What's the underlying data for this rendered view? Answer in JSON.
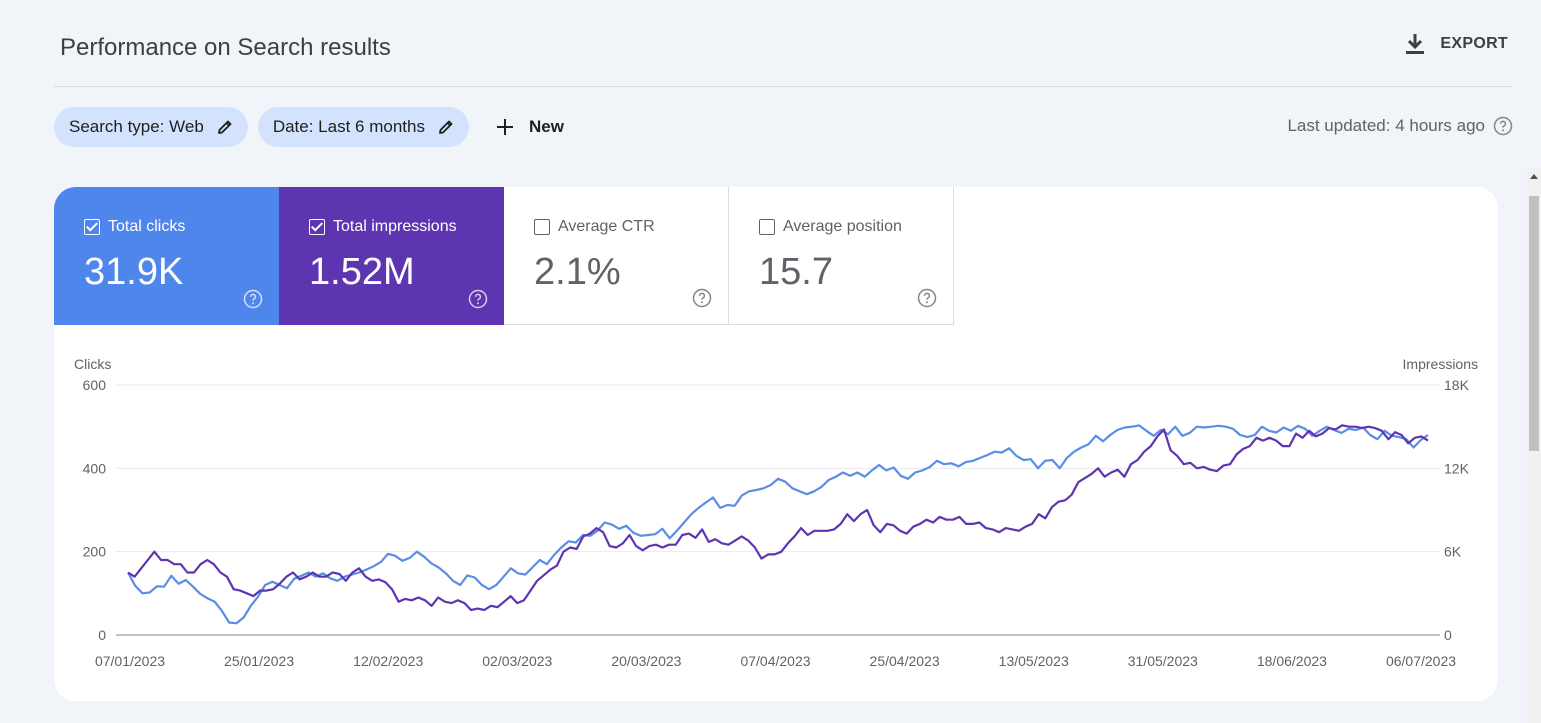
{
  "header": {
    "title": "Performance on Search results",
    "export_label": "EXPORT"
  },
  "filters": {
    "search_type": "Search type: Web",
    "date": "Date: Last 6 months",
    "new_label": "New"
  },
  "last_updated": "Last updated: 4 hours ago",
  "metrics": {
    "clicks": {
      "label": "Total clicks",
      "value": "31.9K",
      "checked": true,
      "color": "#4e86eb"
    },
    "impressions": {
      "label": "Total impressions",
      "value": "1.52M",
      "checked": true,
      "color": "#5e35b1"
    },
    "ctr": {
      "label": "Average CTR",
      "value": "2.1%",
      "checked": false
    },
    "position": {
      "label": "Average position",
      "value": "15.7",
      "checked": false
    }
  },
  "colors": {
    "clicks": "#5a8de6",
    "impressions": "#5e35b1",
    "chip_bg": "#d3e3fd",
    "page_bg": "#f1f4f9"
  },
  "chart_data": {
    "type": "line",
    "xlabel": "",
    "ylabel": "Clicks",
    "y2label": "Impressions",
    "ylim": [
      0,
      600
    ],
    "y2lim": [
      0,
      18000
    ],
    "y_ticks": [
      "600",
      "400",
      "200",
      "0"
    ],
    "y2_ticks": [
      "18K",
      "12K",
      "6K",
      "0"
    ],
    "x_ticks": [
      "07/01/2023",
      "25/01/2023",
      "12/02/2023",
      "02/03/2023",
      "20/03/2023",
      "07/04/2023",
      "25/04/2023",
      "13/05/2023",
      "31/05/2023",
      "18/06/2023",
      "06/07/2023"
    ],
    "grid": true,
    "series": [
      {
        "name": "Clicks",
        "axis": "left",
        "values": [
          150,
          118,
          100,
          102,
          117,
          116,
          142,
          123,
          132,
          116,
          99,
          88,
          80,
          58,
          30,
          28,
          42,
          70,
          92,
          120,
          128,
          120,
          112,
          135,
          142,
          150,
          140,
          148,
          136,
          130,
          140,
          145,
          150,
          157,
          165,
          175,
          195,
          190,
          178,
          185,
          200,
          188,
          172,
          162,
          148,
          130,
          120,
          143,
          138,
          120,
          110,
          120,
          140,
          160,
          148,
          145,
          162,
          180,
          170,
          192,
          210,
          225,
          222,
          240,
          238,
          250,
          270,
          265,
          255,
          262,
          245,
          238,
          240,
          242,
          255,
          232,
          250,
          270,
          290,
          305,
          318,
          330,
          305,
          312,
          310,
          335,
          345,
          348,
          352,
          360,
          375,
          368,
          352,
          345,
          338,
          345,
          355,
          372,
          380,
          390,
          382,
          390,
          380,
          395,
          408,
          395,
          402,
          382,
          375,
          390,
          395,
          403,
          418,
          410,
          412,
          405,
          415,
          418,
          425,
          432,
          440,
          438,
          448,
          430,
          420,
          422,
          400,
          418,
          420,
          400,
          425,
          440,
          450,
          458,
          478,
          465,
          480,
          492,
          498,
          500,
          503,
          490,
          478,
          492,
          482,
          500,
          478,
          485,
          500,
          498,
          500,
          502,
          500,
          495,
          480,
          475,
          480,
          500,
          490,
          486,
          498,
          490,
          502,
          495,
          478,
          490,
          500,
          492,
          485,
          495,
          492,
          498,
          480,
          470,
          490,
          478,
          475,
          470,
          450,
          468,
          480
        ]
      },
      {
        "name": "Impressions",
        "axis": "right",
        "values": [
          4500,
          4200,
          4800,
          5400,
          6000,
          5400,
          5400,
          5100,
          5100,
          4500,
          4500,
          5100,
          5400,
          5100,
          4500,
          4200,
          3300,
          3200,
          3000,
          2800,
          3200,
          3200,
          3300,
          3700,
          4200,
          4500,
          4000,
          4200,
          4500,
          4200,
          4200,
          4500,
          4400,
          3900,
          4500,
          4800,
          4200,
          3900,
          4000,
          3800,
          3300,
          2400,
          2600,
          2500,
          2700,
          2500,
          2100,
          2700,
          2400,
          2300,
          2500,
          2300,
          1800,
          1900,
          1800,
          2100,
          2000,
          2400,
          2800,
          2300,
          2500,
          3200,
          3900,
          4300,
          4700,
          5000,
          6000,
          6300,
          6200,
          7100,
          7300,
          7700,
          7400,
          6400,
          6300,
          6600,
          7200,
          6400,
          6100,
          6400,
          6500,
          6300,
          6500,
          6500,
          7200,
          7300,
          7000,
          7600,
          6700,
          6900,
          6600,
          6500,
          6800,
          7100,
          6800,
          6300,
          5500,
          5800,
          5800,
          6000,
          6600,
          7100,
          7700,
          7200,
          7500,
          7500,
          7500,
          7600,
          8000,
          8700,
          8200,
          8700,
          9000,
          7900,
          7400,
          8000,
          7900,
          7500,
          7300,
          7800,
          8000,
          8300,
          8100,
          8500,
          8300,
          8300,
          8500,
          8000,
          8000,
          8100,
          7700,
          7600,
          7400,
          7700,
          7600,
          7500,
          7800,
          8000,
          8700,
          8400,
          9200,
          9600,
          9700,
          10100,
          11000,
          11300,
          11600,
          12000,
          11400,
          11700,
          11900,
          11400,
          12300,
          12600,
          13200,
          13600,
          14300,
          14800,
          13300,
          12900,
          12300,
          12400,
          12000,
          12100,
          11900,
          11800,
          12200,
          12300,
          13000,
          13400,
          13600,
          14200,
          14000,
          14200,
          14000,
          13600,
          13600,
          14500,
          14200,
          14700,
          14300,
          14500,
          14900,
          14800,
          15100,
          15000,
          15000,
          14900,
          15000,
          14900,
          14700,
          14100,
          14600,
          14400,
          13800,
          14200,
          14300,
          14000
        ]
      }
    ]
  }
}
